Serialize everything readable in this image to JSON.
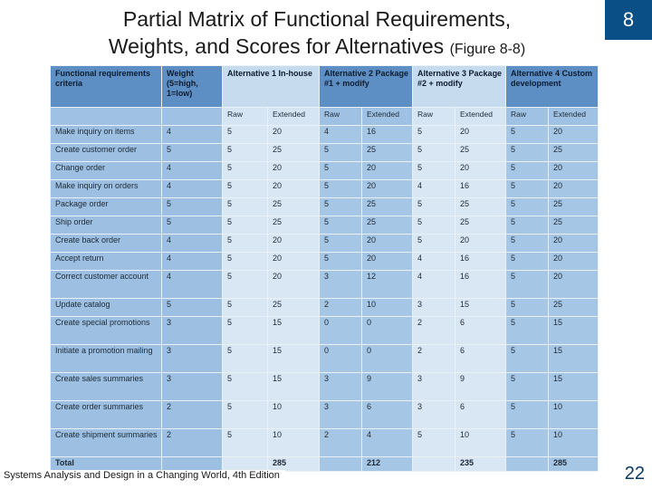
{
  "slide": {
    "title_line1": "Partial Matrix of Functional Requirements,",
    "title_line2": "Weights, and Scores for Alternatives",
    "figure_ref": "(Figure 8-8)",
    "chapter": "8",
    "footer": "Systems Analysis and Design in a Changing World, 4th Edition",
    "page_number": "22"
  },
  "table": {
    "headers": {
      "criteria": "Functional requirements criteria",
      "weight": "Weight (5=high, 1=low)",
      "alt1": "Alternative 1 In-house",
      "alt2": "Alternative 2 Package #1 + modify",
      "alt3": "Alternative 3 Package #2 + modify",
      "alt4": "Alternative 4 Custom development"
    },
    "subheaders": {
      "raw": "Raw",
      "extended": "Extended"
    },
    "rows": [
      {
        "criterion": "Make inquiry on items",
        "weight": "4",
        "a1_raw": "5",
        "a1_ext": "20",
        "a2_raw": "4",
        "a2_ext": "16",
        "a3_raw": "5",
        "a3_ext": "20",
        "a4_raw": "5",
        "a4_ext": "20"
      },
      {
        "criterion": "Create customer order",
        "weight": "5",
        "a1_raw": "5",
        "a1_ext": "25",
        "a2_raw": "5",
        "a2_ext": "25",
        "a3_raw": "5",
        "a3_ext": "25",
        "a4_raw": "5",
        "a4_ext": "25"
      },
      {
        "criterion": "Change order",
        "weight": "4",
        "a1_raw": "5",
        "a1_ext": "20",
        "a2_raw": "5",
        "a2_ext": "20",
        "a3_raw": "5",
        "a3_ext": "20",
        "a4_raw": "5",
        "a4_ext": "20"
      },
      {
        "criterion": "Make inquiry on orders",
        "weight": "4",
        "a1_raw": "5",
        "a1_ext": "20",
        "a2_raw": "5",
        "a2_ext": "20",
        "a3_raw": "4",
        "a3_ext": "16",
        "a4_raw": "5",
        "a4_ext": "20"
      },
      {
        "criterion": "Package order",
        "weight": "5",
        "a1_raw": "5",
        "a1_ext": "25",
        "a2_raw": "5",
        "a2_ext": "25",
        "a3_raw": "5",
        "a3_ext": "25",
        "a4_raw": "5",
        "a4_ext": "25"
      },
      {
        "criterion": "Ship order",
        "weight": "5",
        "a1_raw": "5",
        "a1_ext": "25",
        "a2_raw": "5",
        "a2_ext": "25",
        "a3_raw": "5",
        "a3_ext": "25",
        "a4_raw": "5",
        "a4_ext": "25"
      },
      {
        "criterion": "Create back order",
        "weight": "4",
        "a1_raw": "5",
        "a1_ext": "20",
        "a2_raw": "5",
        "a2_ext": "20",
        "a3_raw": "5",
        "a3_ext": "20",
        "a4_raw": "5",
        "a4_ext": "20"
      },
      {
        "criterion": "Accept return",
        "weight": "4",
        "a1_raw": "5",
        "a1_ext": "20",
        "a2_raw": "5",
        "a2_ext": "20",
        "a3_raw": "4",
        "a3_ext": "16",
        "a4_raw": "5",
        "a4_ext": "20"
      },
      {
        "criterion": "Correct customer account",
        "weight": "4",
        "a1_raw": "5",
        "a1_ext": "20",
        "a2_raw": "3",
        "a2_ext": "12",
        "a3_raw": "4",
        "a3_ext": "16",
        "a4_raw": "5",
        "a4_ext": "20"
      },
      {
        "criterion": "Update catalog",
        "weight": "5",
        "a1_raw": "5",
        "a1_ext": "25",
        "a2_raw": "2",
        "a2_ext": "10",
        "a3_raw": "3",
        "a3_ext": "15",
        "a4_raw": "5",
        "a4_ext": "25"
      },
      {
        "criterion": "Create special promotions",
        "weight": "3",
        "a1_raw": "5",
        "a1_ext": "15",
        "a2_raw": "0",
        "a2_ext": "0",
        "a3_raw": "2",
        "a3_ext": "6",
        "a4_raw": "5",
        "a4_ext": "15"
      },
      {
        "criterion": "Initiate a promotion mailing",
        "weight": "3",
        "a1_raw": "5",
        "a1_ext": "15",
        "a2_raw": "0",
        "a2_ext": "0",
        "a3_raw": "2",
        "a3_ext": "6",
        "a4_raw": "5",
        "a4_ext": "15"
      },
      {
        "criterion": "Create sales summaries",
        "weight": "3",
        "a1_raw": "5",
        "a1_ext": "15",
        "a2_raw": "3",
        "a2_ext": "9",
        "a3_raw": "3",
        "a3_ext": "9",
        "a4_raw": "5",
        "a4_ext": "15"
      },
      {
        "criterion": "Create order summaries",
        "weight": "2",
        "a1_raw": "5",
        "a1_ext": "10",
        "a2_raw": "3",
        "a2_ext": "6",
        "a3_raw": "3",
        "a3_ext": "6",
        "a4_raw": "5",
        "a4_ext": "10"
      },
      {
        "criterion": "Create shipment summaries",
        "weight": "2",
        "a1_raw": "5",
        "a1_ext": "10",
        "a2_raw": "2",
        "a2_ext": "4",
        "a3_raw": "5",
        "a3_ext": "10",
        "a4_raw": "5",
        "a4_ext": "10"
      }
    ],
    "total": {
      "label": "Total",
      "a1": "285",
      "a2": "212",
      "a3": "235",
      "a4": "285"
    }
  }
}
